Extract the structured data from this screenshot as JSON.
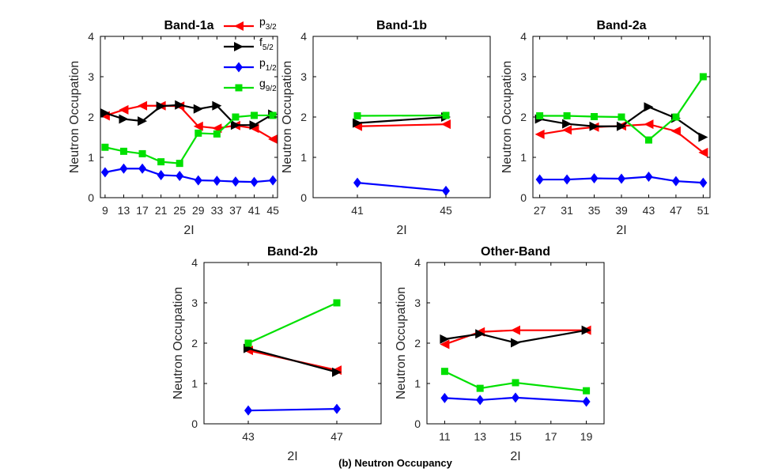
{
  "figure_caption": "(b) Neutron Occupancy",
  "series_styles": [
    {
      "key": "p32",
      "label_base": "p",
      "label_sub": "3/2",
      "color": "#ff0000",
      "marker": "triangle-left"
    },
    {
      "key": "f52",
      "label_base": "f",
      "label_sub": "5/2",
      "color": "#000000",
      "marker": "triangle-right"
    },
    {
      "key": "p12",
      "label_base": "p",
      "label_sub": "1/2",
      "color": "#0000ff",
      "marker": "diamond"
    },
    {
      "key": "g92",
      "label_base": "g",
      "label_sub": "9/2",
      "color": "#00e000",
      "marker": "square"
    }
  ],
  "chart_data": [
    {
      "type": "line",
      "title": "Band-1a",
      "xlabel": "2I",
      "ylabel": "Neutron Occupation",
      "xlim": [
        8,
        46
      ],
      "ylim": [
        0,
        4
      ],
      "xticks": [
        9,
        13,
        17,
        21,
        25,
        29,
        33,
        37,
        41,
        45
      ],
      "yticks": [
        0,
        1,
        2,
        3,
        4
      ],
      "legend": "top-right",
      "series": [
        {
          "key": "p32",
          "x": [
            9,
            13,
            17,
            21,
            25,
            29,
            33,
            37,
            41,
            45
          ],
          "values": [
            2.03,
            2.18,
            2.28,
            2.28,
            2.27,
            1.77,
            1.72,
            1.79,
            1.72,
            1.45
          ]
        },
        {
          "key": "f52",
          "x": [
            9,
            13,
            17,
            21,
            25,
            29,
            33,
            37,
            41,
            45
          ],
          "values": [
            2.1,
            1.95,
            1.9,
            2.27,
            2.3,
            2.2,
            2.28,
            1.8,
            1.8,
            2.07
          ]
        },
        {
          "key": "p12",
          "x": [
            9,
            13,
            17,
            21,
            25,
            29,
            33,
            37,
            41,
            45
          ],
          "values": [
            0.63,
            0.72,
            0.72,
            0.56,
            0.54,
            0.43,
            0.42,
            0.4,
            0.39,
            0.43
          ]
        },
        {
          "key": "g92",
          "x": [
            9,
            13,
            17,
            21,
            25,
            29,
            33,
            37,
            41,
            45
          ],
          "values": [
            1.25,
            1.15,
            1.09,
            0.89,
            0.85,
            1.6,
            1.58,
            2.0,
            2.04,
            2.04
          ]
        }
      ]
    },
    {
      "type": "line",
      "title": "Band-1b",
      "xlabel": "2I",
      "ylabel": "Neutron Occupation",
      "xlim": [
        39,
        47
      ],
      "ylim": [
        0,
        4
      ],
      "xticks": [
        41,
        45
      ],
      "yticks": [
        0,
        1,
        2,
        3,
        4
      ],
      "series": [
        {
          "key": "p32",
          "x": [
            41,
            45
          ],
          "values": [
            1.77,
            1.82
          ]
        },
        {
          "key": "f52",
          "x": [
            41,
            45
          ],
          "values": [
            1.85,
            2.0
          ]
        },
        {
          "key": "p12",
          "x": [
            41,
            45
          ],
          "values": [
            0.37,
            0.17
          ]
        },
        {
          "key": "g92",
          "x": [
            41,
            45
          ],
          "values": [
            2.03,
            2.04
          ]
        }
      ]
    },
    {
      "type": "line",
      "title": "Band-2a",
      "xlabel": "2I",
      "ylabel": "Neutron Occupation",
      "xlim": [
        26,
        52
      ],
      "ylim": [
        0,
        4
      ],
      "xticks": [
        27,
        31,
        35,
        39,
        43,
        47,
        51
      ],
      "yticks": [
        0,
        1,
        2,
        3,
        4
      ],
      "series": [
        {
          "key": "p32",
          "x": [
            27,
            31,
            35,
            39,
            43,
            47,
            51
          ],
          "values": [
            1.57,
            1.68,
            1.75,
            1.78,
            1.82,
            1.65,
            1.12
          ]
        },
        {
          "key": "f52",
          "x": [
            27,
            31,
            35,
            39,
            43,
            47,
            51
          ],
          "values": [
            1.95,
            1.83,
            1.77,
            1.77,
            2.25,
            1.97,
            1.5
          ]
        },
        {
          "key": "p12",
          "x": [
            27,
            31,
            35,
            39,
            43,
            47,
            51
          ],
          "values": [
            0.45,
            0.45,
            0.48,
            0.47,
            0.52,
            0.41,
            0.37
          ]
        },
        {
          "key": "g92",
          "x": [
            27,
            31,
            35,
            39,
            43,
            47,
            51
          ],
          "values": [
            2.03,
            2.03,
            2.01,
            2.0,
            1.43,
            2.0,
            3.0
          ]
        }
      ]
    },
    {
      "type": "line",
      "title": "Band-2b",
      "xlabel": "2I",
      "ylabel": "Neutron Occupation",
      "xlim": [
        41,
        49
      ],
      "ylim": [
        0,
        4
      ],
      "xticks": [
        43,
        47
      ],
      "yticks": [
        0,
        1,
        2,
        3,
        4
      ],
      "series": [
        {
          "key": "p32",
          "x": [
            43,
            47
          ],
          "values": [
            1.82,
            1.33
          ]
        },
        {
          "key": "f52",
          "x": [
            43,
            47
          ],
          "values": [
            1.87,
            1.28
          ]
        },
        {
          "key": "p12",
          "x": [
            43,
            47
          ],
          "values": [
            0.33,
            0.37
          ]
        },
        {
          "key": "g92",
          "x": [
            43,
            47
          ],
          "values": [
            2.0,
            3.0
          ]
        }
      ]
    },
    {
      "type": "line",
      "title": "Other-Band",
      "xlabel": "2I",
      "ylabel": "Neutron Occupation",
      "xlim": [
        10,
        20
      ],
      "ylim": [
        0,
        4
      ],
      "xticks": [
        11,
        13,
        15,
        17,
        19
      ],
      "yticks": [
        0,
        1,
        2,
        3,
        4
      ],
      "series": [
        {
          "key": "p32",
          "x": [
            11,
            13,
            15,
            19
          ],
          "values": [
            1.97,
            2.28,
            2.32,
            2.32
          ]
        },
        {
          "key": "f52",
          "x": [
            11,
            13,
            15,
            19
          ],
          "values": [
            2.1,
            2.23,
            2.01,
            2.32
          ]
        },
        {
          "key": "p12",
          "x": [
            11,
            13,
            15,
            19
          ],
          "values": [
            0.64,
            0.59,
            0.65,
            0.55
          ]
        },
        {
          "key": "g92",
          "x": [
            11,
            13,
            15,
            19
          ],
          "values": [
            1.3,
            0.88,
            1.02,
            0.82
          ]
        }
      ]
    }
  ]
}
